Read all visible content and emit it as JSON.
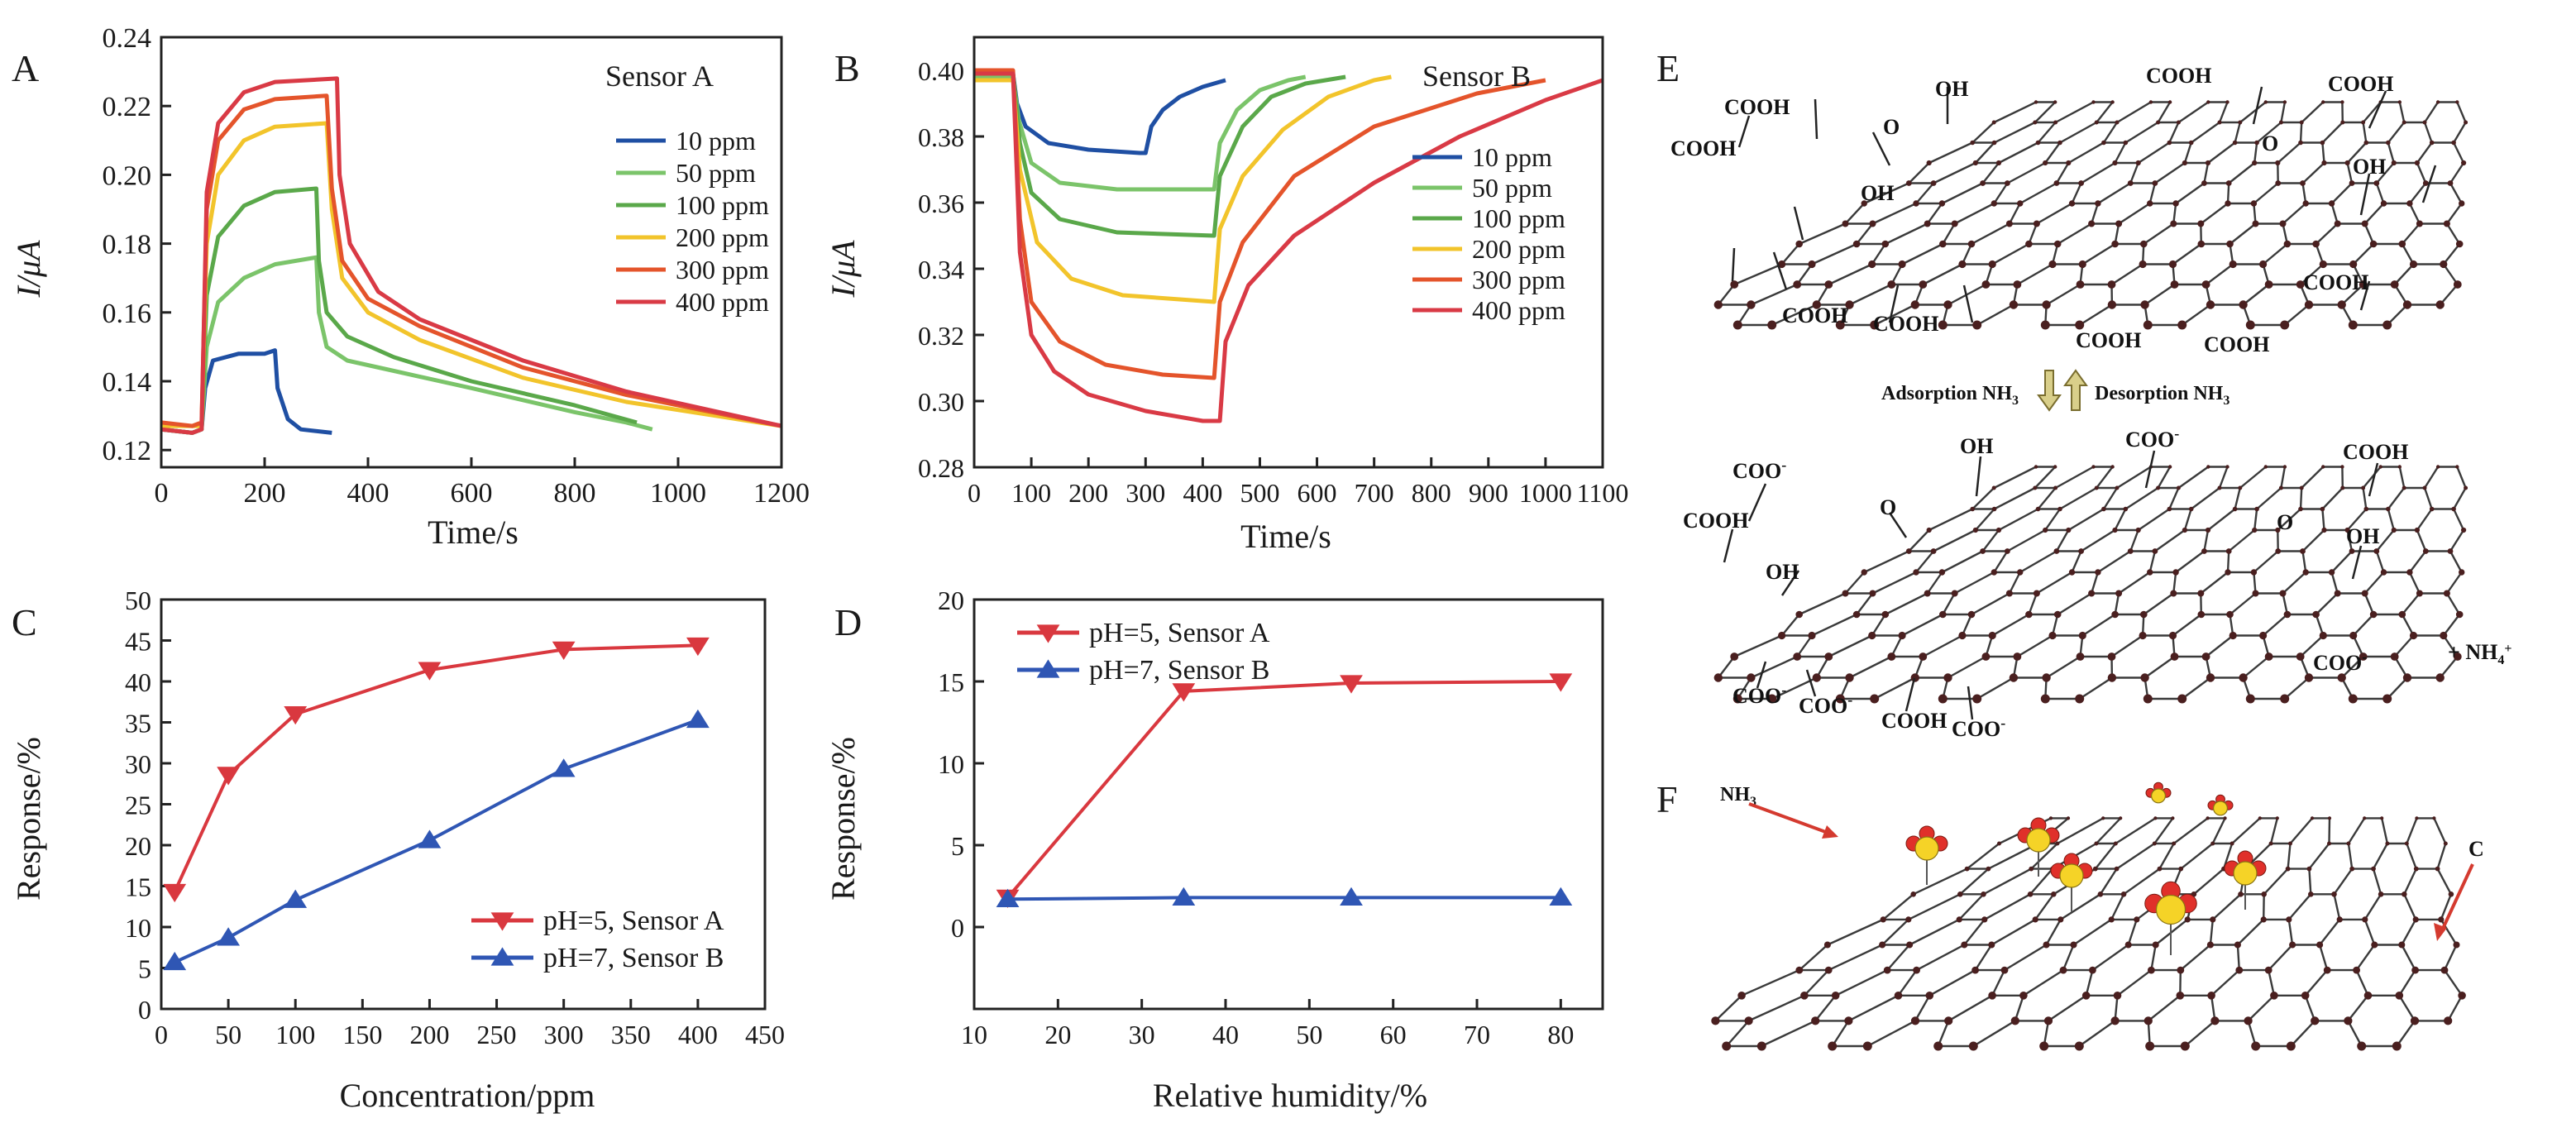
{
  "colors": {
    "c10": "#1f4fa3",
    "c50": "#7bc46a",
    "c100": "#5aa84a",
    "c200": "#f2c42b",
    "c300": "#e4542b",
    "c400": "#d93a45",
    "red_series": "#d9383f",
    "blue_series": "#2f56b4",
    "molecule_yellow": "#f5d327",
    "molecule_red": "#e0302a"
  },
  "chart_data": [
    {
      "id": "A",
      "type": "line",
      "panel_label": "A",
      "annotation": "Sensor A",
      "xlabel": "Time/s",
      "ylabel": "I/μA",
      "xlim": [
        0,
        1200
      ],
      "ylim": [
        0.115,
        0.24
      ],
      "xticks": [
        0,
        200,
        400,
        600,
        800,
        1000,
        1200
      ],
      "xtick_labels": [
        "0",
        "200",
        "400",
        "600",
        "800",
        "1000",
        "1200"
      ],
      "yticks": [
        0.12,
        0.14,
        0.16,
        0.18,
        0.2,
        0.22,
        0.24
      ],
      "ytick_labels": [
        "0.12",
        "0.14",
        "0.16",
        "0.18",
        "0.20",
        "0.22",
        "0.24"
      ],
      "legend": [
        "10 ppm",
        "50 ppm",
        "100 ppm",
        "200 ppm",
        "300 ppm",
        "400 ppm"
      ],
      "series": [
        {
          "name": "10 ppm",
          "color": "#1f4fa3",
          "points": [
            [
              0,
              0.126
            ],
            [
              60,
              0.125
            ],
            [
              78,
              0.126
            ],
            [
              85,
              0.138
            ],
            [
              100,
              0.146
            ],
            [
              150,
              0.148
            ],
            [
              200,
              0.148
            ],
            [
              220,
              0.149
            ],
            [
              225,
              0.138
            ],
            [
              245,
              0.129
            ],
            [
              270,
              0.126
            ],
            [
              330,
              0.125
            ]
          ]
        },
        {
          "name": "50 ppm",
          "color": "#7bc46a",
          "points": [
            [
              0,
              0.126
            ],
            [
              60,
              0.125
            ],
            [
              78,
              0.126
            ],
            [
              88,
              0.15
            ],
            [
              110,
              0.163
            ],
            [
              160,
              0.17
            ],
            [
              220,
              0.174
            ],
            [
              300,
              0.176
            ],
            [
              305,
              0.16
            ],
            [
              320,
              0.15
            ],
            [
              360,
              0.146
            ],
            [
              450,
              0.143
            ],
            [
              600,
              0.138
            ],
            [
              800,
              0.131
            ],
            [
              900,
              0.128
            ],
            [
              950,
              0.126
            ]
          ]
        },
        {
          "name": "100 ppm",
          "color": "#5aa84a",
          "points": [
            [
              0,
              0.126
            ],
            [
              60,
              0.125
            ],
            [
              78,
              0.126
            ],
            [
              88,
              0.165
            ],
            [
              110,
              0.182
            ],
            [
              160,
              0.191
            ],
            [
              220,
              0.195
            ],
            [
              300,
              0.196
            ],
            [
              305,
              0.175
            ],
            [
              320,
              0.16
            ],
            [
              360,
              0.153
            ],
            [
              450,
              0.147
            ],
            [
              600,
              0.14
            ],
            [
              800,
              0.133
            ],
            [
              920,
              0.128
            ]
          ]
        },
        {
          "name": "200 ppm",
          "color": "#f2c42b",
          "points": [
            [
              0,
              0.127
            ],
            [
              60,
              0.127
            ],
            [
              78,
              0.127
            ],
            [
              88,
              0.18
            ],
            [
              110,
              0.2
            ],
            [
              160,
              0.21
            ],
            [
              220,
              0.214
            ],
            [
              320,
              0.215
            ],
            [
              330,
              0.19
            ],
            [
              350,
              0.17
            ],
            [
              400,
              0.16
            ],
            [
              500,
              0.152
            ],
            [
              700,
              0.141
            ],
            [
              900,
              0.134
            ],
            [
              1200,
              0.127
            ]
          ]
        },
        {
          "name": "300 ppm",
          "color": "#e4542b",
          "points": [
            [
              0,
              0.128
            ],
            [
              60,
              0.127
            ],
            [
              78,
              0.128
            ],
            [
              88,
              0.19
            ],
            [
              110,
              0.21
            ],
            [
              160,
              0.219
            ],
            [
              220,
              0.222
            ],
            [
              320,
              0.223
            ],
            [
              330,
              0.196
            ],
            [
              350,
              0.175
            ],
            [
              400,
              0.164
            ],
            [
              500,
              0.156
            ],
            [
              700,
              0.144
            ],
            [
              900,
              0.136
            ],
            [
              1200,
              0.127
            ]
          ]
        },
        {
          "name": "400 ppm",
          "color": "#d93a45",
          "points": [
            [
              0,
              0.126
            ],
            [
              60,
              0.125
            ],
            [
              78,
              0.126
            ],
            [
              88,
              0.195
            ],
            [
              110,
              0.215
            ],
            [
              160,
              0.224
            ],
            [
              220,
              0.227
            ],
            [
              340,
              0.228
            ],
            [
              345,
              0.2
            ],
            [
              365,
              0.18
            ],
            [
              420,
              0.166
            ],
            [
              500,
              0.158
            ],
            [
              700,
              0.146
            ],
            [
              900,
              0.137
            ],
            [
              1200,
              0.127
            ]
          ]
        }
      ]
    },
    {
      "id": "B",
      "type": "line",
      "panel_label": "B",
      "annotation": "Sensor B",
      "xlabel": "Time/s",
      "ylabel": "I/μA",
      "xlim": [
        0,
        1100
      ],
      "ylim": [
        0.28,
        0.41
      ],
      "xticks": [
        0,
        100,
        200,
        300,
        400,
        500,
        600,
        700,
        800,
        900,
        1000,
        1100
      ],
      "xtick_labels": [
        "0",
        "100",
        "200",
        "300",
        "400",
        "500",
        "600",
        "700",
        "800",
        "900",
        "1000",
        "1100"
      ],
      "yticks": [
        0.28,
        0.3,
        0.32,
        0.34,
        0.36,
        0.38,
        0.4
      ],
      "ytick_labels": [
        "0.28",
        "0.30",
        "0.32",
        "0.34",
        "0.36",
        "0.38",
        "0.40"
      ],
      "legend": [
        "10 ppm",
        "50 ppm",
        "100 ppm",
        "200 ppm",
        "300 ppm",
        "400 ppm"
      ],
      "series": [
        {
          "name": "10 ppm",
          "color": "#1f4fa3",
          "points": [
            [
              0,
              0.399
            ],
            [
              60,
              0.399
            ],
            [
              68,
              0.399
            ],
            [
              75,
              0.39
            ],
            [
              90,
              0.383
            ],
            [
              130,
              0.378
            ],
            [
              200,
              0.376
            ],
            [
              290,
              0.375
            ],
            [
              300,
              0.375
            ],
            [
              310,
              0.383
            ],
            [
              330,
              0.388
            ],
            [
              360,
              0.392
            ],
            [
              400,
              0.395
            ],
            [
              440,
              0.397
            ]
          ]
        },
        {
          "name": "50 ppm",
          "color": "#7bc46a",
          "points": [
            [
              0,
              0.398
            ],
            [
              60,
              0.398
            ],
            [
              68,
              0.398
            ],
            [
              78,
              0.385
            ],
            [
              100,
              0.372
            ],
            [
              150,
              0.366
            ],
            [
              250,
              0.364
            ],
            [
              420,
              0.364
            ],
            [
              430,
              0.378
            ],
            [
              460,
              0.388
            ],
            [
              500,
              0.394
            ],
            [
              550,
              0.397
            ],
            [
              580,
              0.398
            ]
          ]
        },
        {
          "name": "100 ppm",
          "color": "#5aa84a",
          "points": [
            [
              0,
              0.399
            ],
            [
              60,
              0.399
            ],
            [
              68,
              0.399
            ],
            [
              80,
              0.378
            ],
            [
              100,
              0.363
            ],
            [
              150,
              0.355
            ],
            [
              250,
              0.351
            ],
            [
              420,
              0.35
            ],
            [
              430,
              0.368
            ],
            [
              470,
              0.383
            ],
            [
              520,
              0.392
            ],
            [
              580,
              0.396
            ],
            [
              650,
              0.398
            ]
          ]
        },
        {
          "name": "200 ppm",
          "color": "#f2c42b",
          "points": [
            [
              0,
              0.397
            ],
            [
              60,
              0.397
            ],
            [
              68,
              0.397
            ],
            [
              80,
              0.37
            ],
            [
              110,
              0.348
            ],
            [
              170,
              0.337
            ],
            [
              260,
              0.332
            ],
            [
              420,
              0.33
            ],
            [
              430,
              0.352
            ],
            [
              470,
              0.368
            ],
            [
              540,
              0.382
            ],
            [
              620,
              0.392
            ],
            [
              700,
              0.397
            ],
            [
              730,
              0.398
            ]
          ]
        },
        {
          "name": "300 ppm",
          "color": "#e4542b",
          "points": [
            [
              0,
              0.4
            ],
            [
              60,
              0.4
            ],
            [
              68,
              0.4
            ],
            [
              80,
              0.355
            ],
            [
              100,
              0.33
            ],
            [
              150,
              0.318
            ],
            [
              230,
              0.311
            ],
            [
              330,
              0.308
            ],
            [
              420,
              0.307
            ],
            [
              430,
              0.33
            ],
            [
              470,
              0.348
            ],
            [
              560,
              0.368
            ],
            [
              700,
              0.383
            ],
            [
              880,
              0.393
            ],
            [
              1000,
              0.397
            ]
          ]
        },
        {
          "name": "400 ppm",
          "color": "#d93a45",
          "points": [
            [
              0,
              0.399
            ],
            [
              60,
              0.399
            ],
            [
              68,
              0.399
            ],
            [
              80,
              0.345
            ],
            [
              100,
              0.32
            ],
            [
              140,
              0.309
            ],
            [
              200,
              0.302
            ],
            [
              300,
              0.297
            ],
            [
              400,
              0.294
            ],
            [
              430,
              0.294
            ],
            [
              440,
              0.318
            ],
            [
              480,
              0.335
            ],
            [
              560,
              0.35
            ],
            [
              700,
              0.366
            ],
            [
              850,
              0.38
            ],
            [
              1000,
              0.391
            ],
            [
              1100,
              0.397
            ]
          ]
        }
      ]
    },
    {
      "id": "C",
      "type": "line",
      "panel_label": "C",
      "xlabel": "Concentration/ppm",
      "ylabel": "Response/%",
      "xlim": [
        0,
        450
      ],
      "ylim": [
        0,
        50
      ],
      "xticks": [
        0,
        50,
        100,
        150,
        200,
        250,
        300,
        350,
        400,
        450
      ],
      "xtick_labels": [
        "0",
        "50",
        "100",
        "150",
        "200",
        "250",
        "300",
        "350",
        "400",
        "450"
      ],
      "yticks": [
        0,
        5,
        10,
        15,
        20,
        25,
        30,
        35,
        40,
        45,
        50
      ],
      "ytick_labels": [
        "0",
        "5",
        "10",
        "15",
        "20",
        "25",
        "30",
        "35",
        "40",
        "45",
        "50"
      ],
      "legend": [
        "pH=5, Sensor A",
        "pH=7, Sensor B"
      ],
      "series": [
        {
          "name": "pH=5, Sensor A",
          "color": "#d9383f",
          "marker": "triangle-down",
          "points": [
            [
              10,
              14.3
            ],
            [
              50,
              28.6
            ],
            [
              100,
              36.0
            ],
            [
              200,
              41.4
            ],
            [
              300,
              43.9
            ],
            [
              400,
              44.4
            ]
          ]
        },
        {
          "name": "pH=7, Sensor B",
          "color": "#2f56b4",
          "marker": "triangle-up",
          "points": [
            [
              10,
              5.7
            ],
            [
              50,
              8.7
            ],
            [
              100,
              13.3
            ],
            [
              200,
              20.6
            ],
            [
              300,
              29.3
            ],
            [
              400,
              35.3
            ]
          ]
        }
      ]
    },
    {
      "id": "D",
      "type": "line",
      "panel_label": "D",
      "xlabel": "Relative humidity/%",
      "ylabel": "Response/%",
      "xlim": [
        10,
        85
      ],
      "ylim": [
        -5,
        20
      ],
      "xticks": [
        10,
        20,
        30,
        40,
        50,
        60,
        70,
        80
      ],
      "xtick_labels": [
        "10",
        "20",
        "30",
        "40",
        "50",
        "60",
        "70",
        "80"
      ],
      "yticks": [
        0,
        5,
        10,
        15,
        20
      ],
      "ytick_labels": [
        "0",
        "5",
        "10",
        "15",
        "20"
      ],
      "legend": [
        "pH=5, Sensor A",
        "pH=7, Sensor B"
      ],
      "series": [
        {
          "name": "pH=5, Sensor A",
          "color": "#d9383f",
          "marker": "triangle-down",
          "points": [
            [
              14,
              1.8
            ],
            [
              35,
              14.4
            ],
            [
              55,
              14.9
            ],
            [
              80,
              15.0
            ]
          ]
        },
        {
          "name": "pH=7, Sensor B",
          "color": "#2f56b4",
          "marker": "triangle-up",
          "points": [
            [
              14,
              1.7
            ],
            [
              35,
              1.8
            ],
            [
              55,
              1.8
            ],
            [
              80,
              1.8
            ]
          ]
        }
      ]
    }
  ],
  "panel_e": {
    "label": "E",
    "top_groups": [
      "COOH",
      "OH",
      "COOH",
      "COOH",
      "COOH",
      "O",
      "O",
      "OH",
      "OH",
      "COOH",
      "COOH",
      "COOH",
      "COOH",
      "COOH"
    ],
    "adsorption": "Adsorption",
    "desorption": "Desorption",
    "nh3": "NH",
    "subscript_3": "3",
    "bottom_groups": [
      "COO",
      "OH",
      "COO",
      "COOH",
      "COOH",
      "O",
      "O",
      "OH",
      "OH",
      "COO",
      "COO",
      "COOH",
      "COO",
      "COO"
    ],
    "charge_minus": "-",
    "ammonium": "+ NH",
    "ammonium_sub": "4",
    "ammonium_charge": "+"
  },
  "panel_f": {
    "label": "F",
    "molecule_label": "NH",
    "molecule_sub": "3",
    "carbon_label": "C"
  }
}
